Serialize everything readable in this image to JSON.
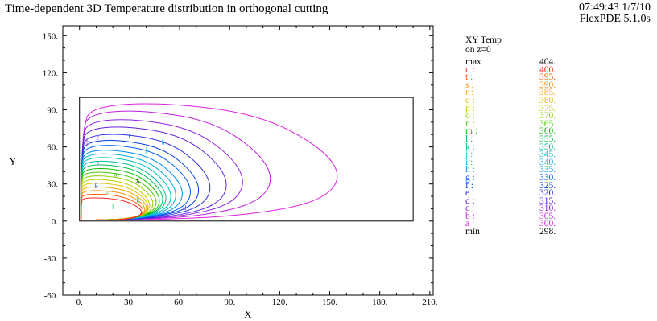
{
  "title": "Time-dependent 3D Temperature distribution in orthogonal cutting",
  "stamp": {
    "time_date": "07:49:43 1/7/10",
    "software": "FlexPDE 5.1.0s"
  },
  "legend": {
    "heading": "XY Temp",
    "subheading": "on z=0",
    "max_label": "max",
    "max_value": "404.",
    "min_label": "min",
    "min_value": "298.",
    "levels": [
      {
        "key": "u :",
        "value": "400.",
        "color": "#ff2020"
      },
      {
        "key": "t :",
        "value": "395.",
        "color": "#ff5a00"
      },
      {
        "key": "s :",
        "value": "390.",
        "color": "#ff8c00"
      },
      {
        "key": "r :",
        "value": "385.",
        "color": "#f5a800"
      },
      {
        "key": "q :",
        "value": "380.",
        "color": "#e0c000"
      },
      {
        "key": "p :",
        "value": "375.",
        "color": "#c0d000"
      },
      {
        "key": "o :",
        "value": "370.",
        "color": "#90d000"
      },
      {
        "key": "n :",
        "value": "365.",
        "color": "#50c800"
      },
      {
        "key": "m :",
        "value": "360.",
        "color": "#10c000"
      },
      {
        "key": "l :",
        "value": "355.",
        "color": "#00c050"
      },
      {
        "key": "k :",
        "value": "350.",
        "color": "#00c090"
      },
      {
        "key": "j :",
        "value": "345.",
        "color": "#00c0c0"
      },
      {
        "key": "i :",
        "value": "340.",
        "color": "#00b0e0"
      },
      {
        "key": "h :",
        "value": "335.",
        "color": "#0090f0"
      },
      {
        "key": "g :",
        "value": "330.",
        "color": "#0060f0"
      },
      {
        "key": "f :",
        "value": "325.",
        "color": "#0040e0"
      },
      {
        "key": "e :",
        "value": "320.",
        "color": "#3030e0"
      },
      {
        "key": "d :",
        "value": "315.",
        "color": "#6020e0"
      },
      {
        "key": "c :",
        "value": "310.",
        "color": "#9020e0"
      },
      {
        "key": "b :",
        "value": "305.",
        "color": "#c020e0"
      },
      {
        "key": "a :",
        "value": "300.",
        "color": "#e020e0"
      }
    ]
  },
  "chart_data": {
    "type": "contour",
    "xlabel": "X",
    "ylabel": "Y",
    "xlim": [
      -10,
      212
    ],
    "ylim": [
      -60,
      158
    ],
    "xticks": [
      0,
      30,
      60,
      90,
      120,
      150,
      180,
      210
    ],
    "xtick_labels": [
      "0.",
      "30.",
      "60.",
      "90.",
      "120.",
      "150.",
      "180.",
      "210."
    ],
    "yticks": [
      -60,
      -30,
      0,
      30,
      60,
      90,
      120,
      150
    ],
    "ytick_labels": [
      "-60.",
      "-30.",
      "0.",
      "30.",
      "60.",
      "90.",
      "120.",
      "150."
    ],
    "domain_rect": {
      "x0": 0,
      "x1": 200,
      "y0": 0,
      "y1": 100
    },
    "hot_spot": {
      "x": 35,
      "y": 33,
      "label": "x"
    },
    "contours": [
      {
        "label": "a",
        "value": 300,
        "x_extent": 158,
        "y_extent": 96
      },
      {
        "label": "b",
        "value": 305,
        "x_extent": 117,
        "y_extent": 90
      },
      {
        "label": "c",
        "value": 310,
        "x_extent": 100,
        "y_extent": 83
      },
      {
        "label": "d",
        "value": 315,
        "x_extent": 90,
        "y_extent": 77
      },
      {
        "label": "e",
        "value": 320,
        "x_extent": 80,
        "y_extent": 71
      },
      {
        "label": "f",
        "value": 325,
        "x_extent": 73,
        "y_extent": 66
      },
      {
        "label": "g",
        "value": 330,
        "x_extent": 68,
        "y_extent": 62
      },
      {
        "label": "h",
        "value": 335,
        "x_extent": 63,
        "y_extent": 58
      },
      {
        "label": "i",
        "value": 340,
        "x_extent": 59,
        "y_extent": 55
      },
      {
        "label": "j",
        "value": 345,
        "x_extent": 56,
        "y_extent": 52
      },
      {
        "label": "k",
        "value": 350,
        "x_extent": 53,
        "y_extent": 49
      },
      {
        "label": "l",
        "value": 355,
        "x_extent": 51,
        "y_extent": 46
      },
      {
        "label": "m",
        "value": 360,
        "x_extent": 49,
        "y_extent": 43
      },
      {
        "label": "n",
        "value": 365,
        "x_extent": 47,
        "y_extent": 40
      },
      {
        "label": "o",
        "value": 370,
        "x_extent": 45,
        "y_extent": 37
      },
      {
        "label": "p",
        "value": 375,
        "x_extent": 43,
        "y_extent": 34
      },
      {
        "label": "q",
        "value": 380,
        "x_extent": 42,
        "y_extent": 31
      },
      {
        "label": "r",
        "value": 385,
        "x_extent": 41,
        "y_extent": 28
      },
      {
        "label": "s",
        "value": 390,
        "x_extent": 40,
        "y_extent": 25
      },
      {
        "label": "t",
        "value": 395,
        "x_extent": 39,
        "y_extent": 22
      },
      {
        "label": "u",
        "value": 400,
        "x_extent": 38,
        "y_extent": 19
      }
    ],
    "contour_label_positions": [
      {
        "label": "b",
        "x": 5,
        "y": 62
      },
      {
        "label": "c",
        "x": 11,
        "y": 66
      },
      {
        "label": "d",
        "x": 63,
        "y": 9
      },
      {
        "label": "e",
        "x": 11,
        "y": 45
      },
      {
        "label": "f",
        "x": 30,
        "y": 67
      },
      {
        "label": "h",
        "x": 50,
        "y": 62
      },
      {
        "label": "j",
        "x": 40,
        "y": 56
      },
      {
        "label": "g",
        "x": 10,
        "y": 28
      },
      {
        "label": "k",
        "x": 35,
        "y": 15
      },
      {
        "label": "l",
        "x": 20,
        "y": 10
      },
      {
        "label": "m",
        "x": 22,
        "y": 36
      },
      {
        "label": "n",
        "x": 17,
        "y": 22
      }
    ]
  }
}
